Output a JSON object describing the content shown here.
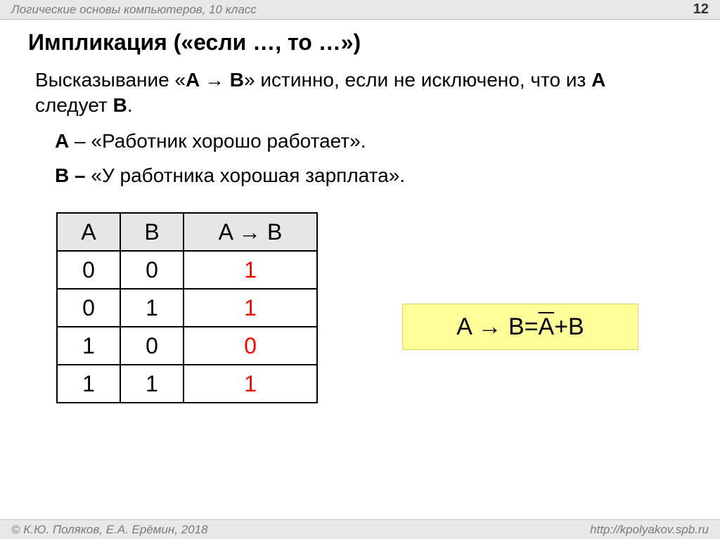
{
  "header": {
    "course": "Логические основы компьютеров, 10 класс",
    "page": "12"
  },
  "title": "Импликация («если …, то …»)",
  "description": {
    "prefix": "Высказывание «",
    "expr_left": "A",
    "expr_arrow": " → ",
    "expr_right": "B",
    "suffix": "» истинно, если не исключено, что из ",
    "A": "A",
    "mid": " следует ",
    "B": "B",
    "end": "."
  },
  "example_A": {
    "label": "A",
    "dash": " – ",
    "text": "«Работник хорошо работает»."
  },
  "example_B": {
    "label": "B",
    "dash": " – ",
    "text": "«У работника хорошая зарплата»."
  },
  "table": {
    "headers": {
      "a": "A",
      "b": "B",
      "res": "A → B"
    },
    "rows": [
      {
        "a": "0",
        "b": "0",
        "r": "1",
        "r_red": true
      },
      {
        "a": "0",
        "b": "1",
        "r": "1",
        "r_red": true
      },
      {
        "a": "1",
        "b": "0",
        "r": "0",
        "r_red": true
      },
      {
        "a": "1",
        "b": "1",
        "r": "1",
        "r_red": true
      }
    ],
    "colors": {
      "header_bg": "#e6e6e6",
      "cell_border": "#000000",
      "red": "#ff0000"
    }
  },
  "formula": {
    "left": "A → B",
    "eq": " = ",
    "notA": "A",
    "plus": " + ",
    "B": "B",
    "bg": "#ffff99"
  },
  "footer": {
    "copyright": "© К.Ю. Поляков, Е.А. Ерёмин, 2018",
    "url": "http://kpolyakov.spb.ru"
  }
}
